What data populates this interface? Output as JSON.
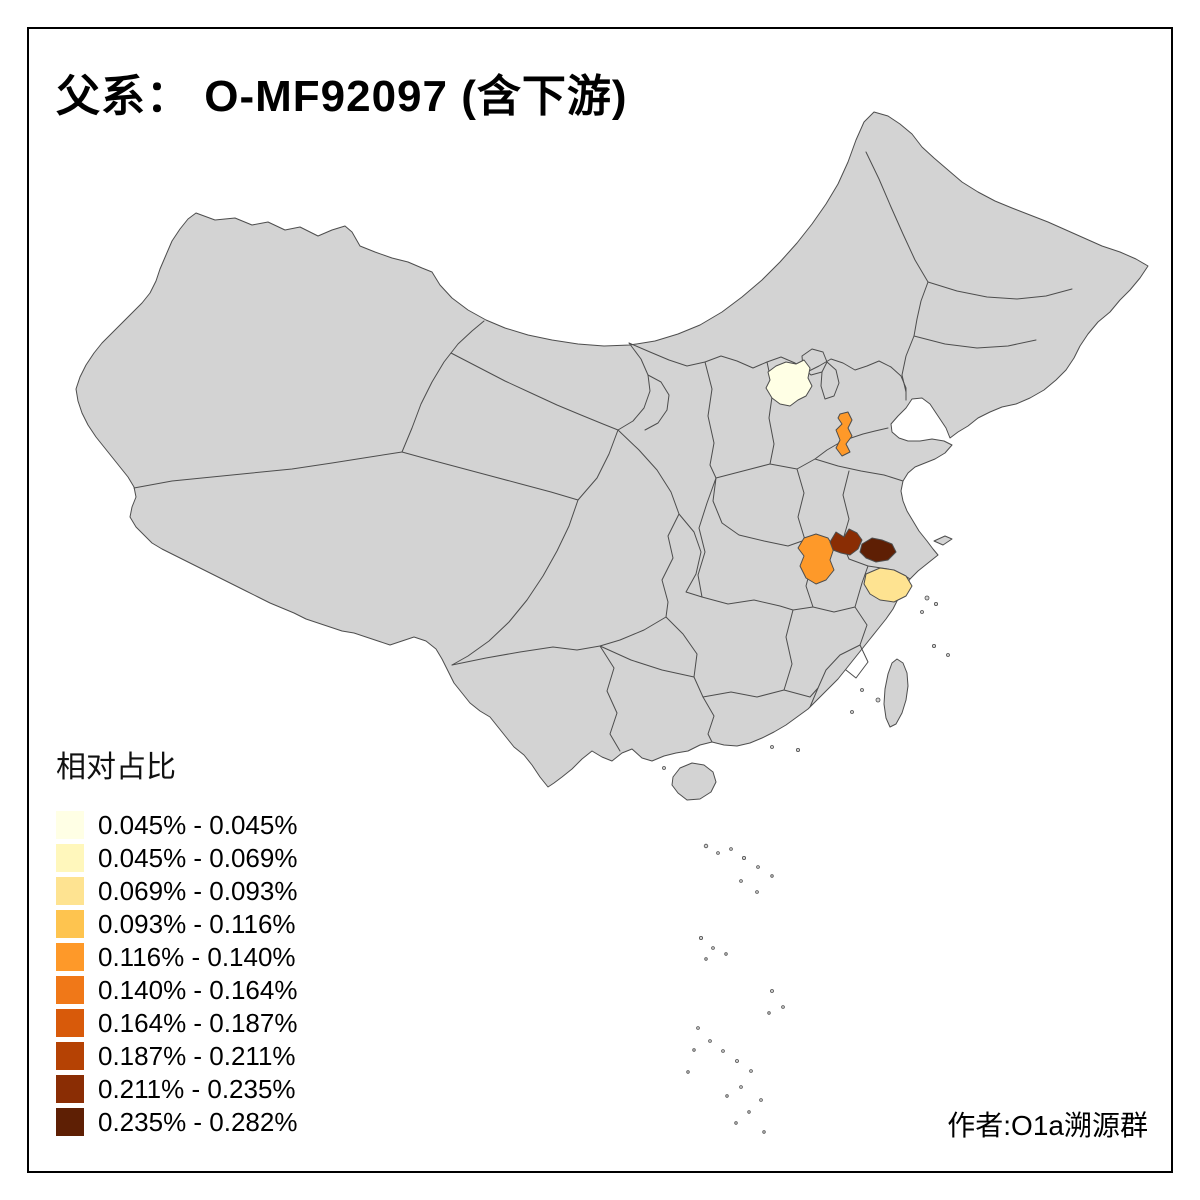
{
  "title": "父系： O-MF92097 (含下游)",
  "credit": "作者:O1a溯源群",
  "legend": {
    "title": "相对占比",
    "items": [
      {
        "label": "0.045% - 0.045%",
        "color": "#FFFFE5"
      },
      {
        "label": "0.045% - 0.069%",
        "color": "#FFF7BC"
      },
      {
        "label": "0.069% - 0.093%",
        "color": "#FEE391"
      },
      {
        "label": "0.093% - 0.116%",
        "color": "#FEC44F"
      },
      {
        "label": "0.116% - 0.140%",
        "color": "#FE9929"
      },
      {
        "label": "0.140% - 0.164%",
        "color": "#F07818"
      },
      {
        "label": "0.164% - 0.187%",
        "color": "#D85A0A"
      },
      {
        "label": "0.187% - 0.211%",
        "color": "#B54204"
      },
      {
        "label": "0.211% - 0.235%",
        "color": "#8A2D04"
      },
      {
        "label": "0.235% - 0.282%",
        "color": "#5E1F04"
      }
    ]
  },
  "map": {
    "land_color": "#D3D3D3",
    "border_color": "#4D4D4D",
    "background_color": "#FFFFFF",
    "regions": [
      {
        "id": "region-north-pale",
        "bin": 1,
        "color": "#FFFFE5"
      },
      {
        "id": "region-west-shandong",
        "bin": 5,
        "color": "#FE9929"
      },
      {
        "id": "region-central-anhui",
        "bin": 5,
        "color": "#FE9929"
      },
      {
        "id": "region-south-jiangsu",
        "bin": 9,
        "color": "#8A2D04"
      },
      {
        "id": "region-shanghai",
        "bin": 10,
        "color": "#5E1F04"
      },
      {
        "id": "region-north-zhejiang",
        "bin": 3,
        "color": "#FEE391"
      }
    ]
  }
}
